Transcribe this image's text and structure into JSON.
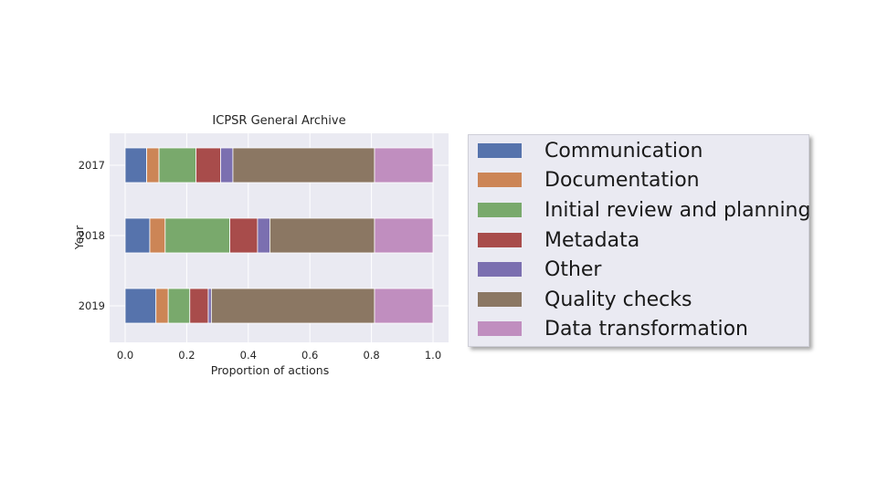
{
  "chart_data": {
    "type": "bar",
    "orientation": "horizontal",
    "stacked": true,
    "title": "ICPSR General Archive",
    "xlabel": "Proportion of actions",
    "ylabel": "Year",
    "xlim": [
      0.0,
      1.05
    ],
    "xticks": [
      "0.0",
      "0.2",
      "0.4",
      "0.6",
      "0.8",
      "1.0"
    ],
    "categories": [
      "2017",
      "2018",
      "2019"
    ],
    "grid": true,
    "legend_position": "outside-right",
    "series": [
      {
        "name": "Communication",
        "color": "#5673ac",
        "values": [
          0.07,
          0.08,
          0.1
        ]
      },
      {
        "name": "Documentation",
        "color": "#cc8556",
        "values": [
          0.04,
          0.05,
          0.04
        ]
      },
      {
        "name": "Initial review and planning",
        "color": "#79a96c",
        "values": [
          0.12,
          0.21,
          0.07
        ]
      },
      {
        "name": "Metadata",
        "color": "#a84c4b",
        "values": [
          0.08,
          0.09,
          0.06
        ]
      },
      {
        "name": "Other",
        "color": "#7b6fb0",
        "values": [
          0.04,
          0.04,
          0.01
        ]
      },
      {
        "name": "Quality checks",
        "color": "#8b7763",
        "values": [
          0.46,
          0.34,
          0.53
        ]
      },
      {
        "name": "Data transformation",
        "color": "#c08ebf",
        "values": [
          0.19,
          0.19,
          0.19
        ]
      }
    ]
  }
}
